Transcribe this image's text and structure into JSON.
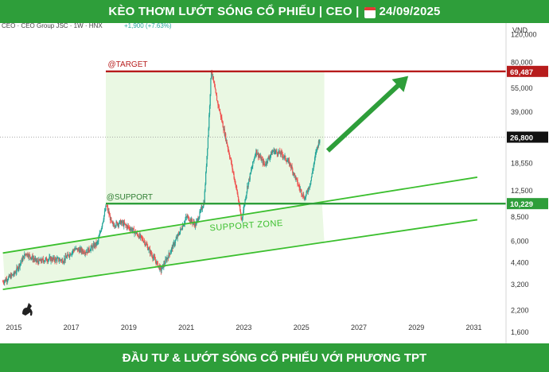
{
  "header": {
    "title_left": "KÈO THƠM LƯỚT SÓNG CỔ PHIẾU | CEO |",
    "date": "24/09/2025"
  },
  "footer": {
    "text": "ĐẦU TƯ & LƯỚT SÓNG CỔ PHIẾU VỚI PHƯƠNG TPT"
  },
  "symbol_info": {
    "name": "CEO · CEO Group JSC · 1W · HNX",
    "change": "+1,900 (+7.63%)"
  },
  "annotations": {
    "target": "@TARGET",
    "support": "@SUPPORT",
    "zone": "SUPPORT ZONE"
  },
  "price_labels": {
    "target": "69,487",
    "current": "26,800",
    "support": "10,229"
  },
  "colors": {
    "banner": "#2e9e3a",
    "up": "#26a69a",
    "down": "#ef5350",
    "target_line": "#b71c1c",
    "support_line": "#2e9e3a",
    "zone_fill": "#eaf8e3"
  },
  "chart_data": {
    "type": "candlestick",
    "yscale": "log",
    "ylabel": "VND",
    "ylim": [
      1350,
      140000
    ],
    "xlim": [
      2014.6,
      2032.2
    ],
    "y_ticks": [
      120000,
      80000,
      55000,
      39000,
      26800,
      18550,
      12500,
      8500,
      6000,
      4400,
      3200,
      2200,
      1600
    ],
    "y_tick_labels": [
      "120,000",
      "80,000",
      "55,000",
      "39,000",
      "26,800",
      "18,550",
      "12,500",
      "8,500",
      "6,000",
      "4,400",
      "3,200",
      "2,200",
      "1,600"
    ],
    "x_ticks": [
      "2015",
      "2017",
      "2019",
      "2021",
      "2023",
      "2025",
      "2027",
      "2029",
      "2031"
    ],
    "target_price": 69487,
    "support_price": 10229,
    "current_price": 26800,
    "channel_lower": [
      [
        2014.7,
        2950
      ],
      [
        2031.2,
        8100
      ]
    ],
    "channel_upper": [
      [
        2014.7,
        5000
      ],
      [
        2031.2,
        15000
      ]
    ],
    "price_path": [
      [
        2014.7,
        3300
      ],
      [
        2015.1,
        3700
      ],
      [
        2015.5,
        5000
      ],
      [
        2015.9,
        4400
      ],
      [
        2016.3,
        4600
      ],
      [
        2016.8,
        4500
      ],
      [
        2017.2,
        5300
      ],
      [
        2017.6,
        5100
      ],
      [
        2018.0,
        5800
      ],
      [
        2018.3,
        10000
      ],
      [
        2018.5,
        7500
      ],
      [
        2018.8,
        7800
      ],
      [
        2019.2,
        7000
      ],
      [
        2019.6,
        6000
      ],
      [
        2019.9,
        4800
      ],
      [
        2020.2,
        3900
      ],
      [
        2020.5,
        5000
      ],
      [
        2020.8,
        6500
      ],
      [
        2021.1,
        8500
      ],
      [
        2021.4,
        7500
      ],
      [
        2021.7,
        10500
      ],
      [
        2021.85,
        30000
      ],
      [
        2021.95,
        72000
      ],
      [
        2022.1,
        50000
      ],
      [
        2022.3,
        35000
      ],
      [
        2022.6,
        20000
      ],
      [
        2022.85,
        12000
      ],
      [
        2023.0,
        8000
      ],
      [
        2023.2,
        13000
      ],
      [
        2023.5,
        22000
      ],
      [
        2023.8,
        18000
      ],
      [
        2024.1,
        22000
      ],
      [
        2024.4,
        21000
      ],
      [
        2024.7,
        18000
      ],
      [
        2025.0,
        13000
      ],
      [
        2025.2,
        11000
      ],
      [
        2025.4,
        14000
      ],
      [
        2025.6,
        22000
      ],
      [
        2025.73,
        26800
      ]
    ]
  }
}
